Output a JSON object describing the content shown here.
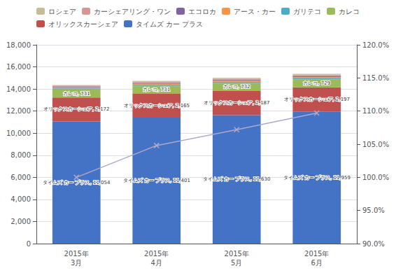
{
  "chart_data": {
    "type": "bar",
    "stacked": true,
    "grid": true,
    "legend": "top",
    "categories": [
      "2015年\n3月",
      "2015年\n4月",
      "2015年\n5月",
      "2015年\n6月"
    ],
    "series": [
      {
        "name": "タイムズ カー プラス",
        "color": "#4472C4",
        "values": [
          11054,
          11401,
          11630,
          11959
        ],
        "data_labels": true,
        "value_labels": [
          "タイムズ カー プラス, 11,054",
          "タイムズ カー プラス, 11,401",
          "タイムズ カー プラス, 11,630",
          "タイムズ カー プラス, 11,959"
        ]
      },
      {
        "name": "オリックスカーシェア",
        "color": "#C0504D",
        "values": [
          2172,
          2165,
          2187,
          2197
        ],
        "data_labels": true,
        "value_labels": [
          "オリックスカーシェア, 2,172",
          "オリックスカーシェア, 2,165",
          "オリックスカーシェア, 2,187",
          "オリックスカーシェア, 2,197"
        ]
      },
      {
        "name": "カレコ",
        "color": "#9BBB59",
        "values": [
          731,
          731,
          732,
          729
        ],
        "data_labels": true,
        "value_labels": [
          "カレコ, 731",
          "カレコ, 731",
          "カレコ, 732",
          "カレコ, 729"
        ]
      },
      {
        "name": "ガリテコ",
        "color": "#4BACC6",
        "values": [
          100,
          108,
          112,
          118
        ]
      },
      {
        "name": "アース・カー",
        "color": "#F79646",
        "values": [
          55,
          60,
          62,
          65
        ]
      },
      {
        "name": "エコロカ",
        "color": "#8064A2",
        "values": [
          75,
          80,
          85,
          90
        ]
      },
      {
        "name": "カーシェアリング・ワン",
        "color": "#D99694",
        "values": [
          115,
          125,
          135,
          145
        ]
      },
      {
        "name": "ロシェア",
        "color": "#C4BD97",
        "values": [
          55,
          60,
          65,
          70
        ]
      },
      {
        "type": "line",
        "axis": "y2",
        "color": "#B0A8C8",
        "marker": "x",
        "values": [
          100.0,
          104.8,
          107.2,
          109.7
        ]
      }
    ],
    "ylim": [
      0,
      18000
    ],
    "yticks": [
      0,
      {
        "value": 2000,
        "label": "2,000"
      },
      {
        "value": 4000,
        "label": "4,000"
      },
      {
        "value": 6000,
        "label": "6,000"
      },
      {
        "value": 8000,
        "label": "8,000"
      },
      {
        "value": 10000,
        "label": "10,000"
      },
      {
        "value": 12000,
        "label": "12,000"
      },
      {
        "value": 14000,
        "label": "14,000"
      },
      {
        "value": 16000,
        "label": "16,000"
      },
      {
        "value": 18000,
        "label": "18,000"
      }
    ],
    "y2lim": [
      90.0,
      120.0
    ],
    "y2ticks": [
      {
        "value": 90.0,
        "label": "90.0%"
      },
      {
        "value": 95.0,
        "label": "95.0%"
      },
      {
        "value": 100.0,
        "label": "100.0%"
      },
      {
        "value": 105.0,
        "label": "105.0%"
      },
      {
        "value": 110.0,
        "label": "110.0%"
      },
      {
        "value": 115.0,
        "label": "115.0%"
      },
      {
        "value": 120.0,
        "label": "120.0%"
      }
    ]
  }
}
